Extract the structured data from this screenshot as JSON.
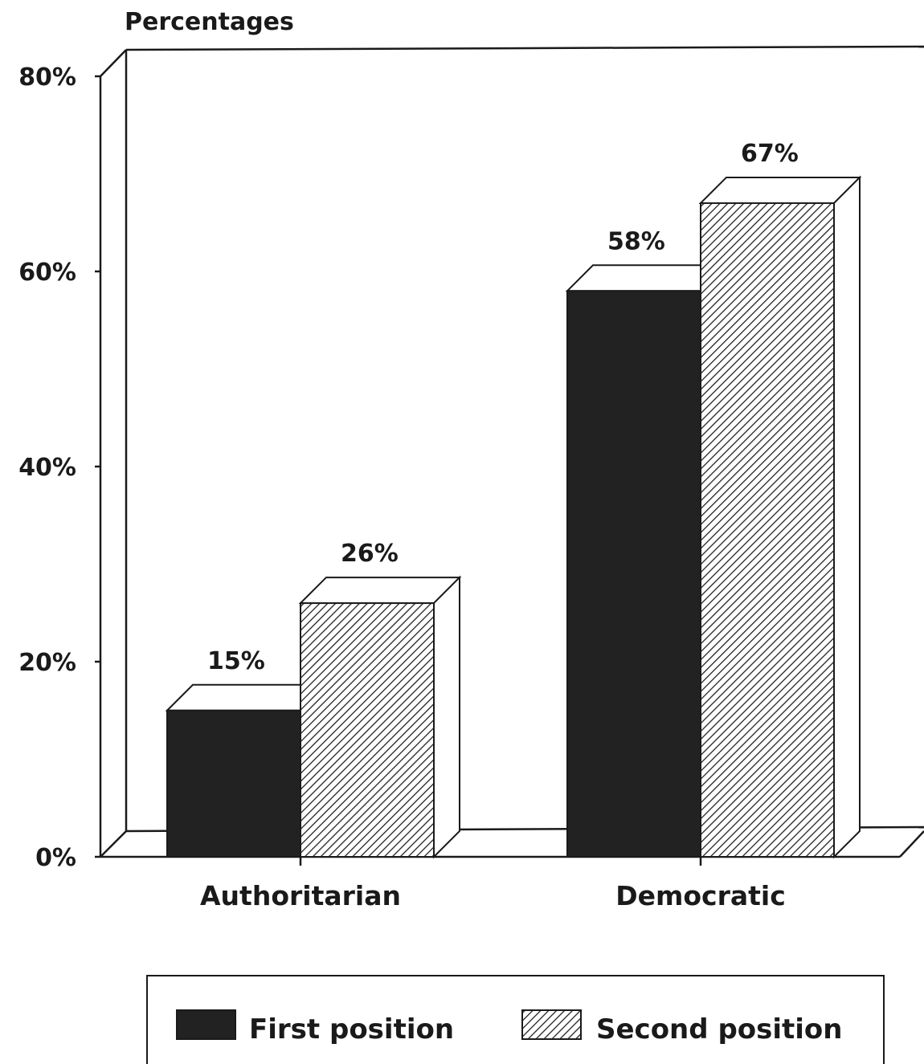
{
  "chart_data": {
    "type": "bar",
    "ylabel": "Percentages",
    "categories": [
      "Authoritarian",
      "Democratic"
    ],
    "series": [
      {
        "name": "First position",
        "values": [
          15,
          58
        ],
        "value_labels": [
          "15%",
          "58%"
        ],
        "fill": "#222222"
      },
      {
        "name": "Second position",
        "values": [
          26,
          67
        ],
        "value_labels": [
          "26%",
          "67%"
        ],
        "fill": "hatched"
      }
    ],
    "ylim": [
      0,
      80
    ],
    "yticks": [
      {
        "value": 0,
        "label": "0%"
      },
      {
        "value": 20,
        "label": "20%"
      },
      {
        "value": 40,
        "label": "40%"
      },
      {
        "value": 60,
        "label": "60%"
      },
      {
        "value": 80,
        "label": "80%"
      }
    ],
    "grid": false,
    "legend_position": "bottom"
  }
}
